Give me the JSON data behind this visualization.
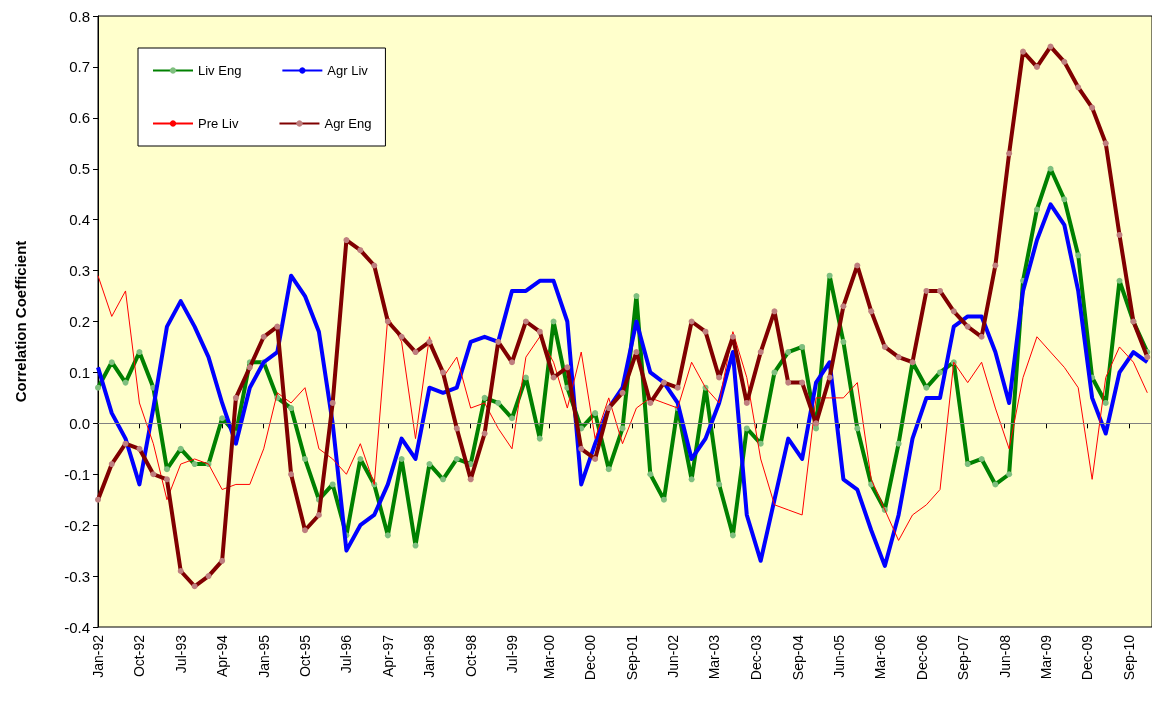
{
  "chart_data": {
    "type": "line",
    "ylabel": "Correlation Coefficient",
    "x": [
      "1992-01",
      "1992-04",
      "1992-07",
      "1992-10",
      "1993-01",
      "1993-04",
      "1993-07",
      "1993-10",
      "1994-01",
      "1994-04",
      "1994-07",
      "1994-10",
      "1995-01",
      "1995-04",
      "1995-07",
      "1995-10",
      "1996-01",
      "1996-04",
      "1996-07",
      "1996-10",
      "1997-01",
      "1997-04",
      "1997-07",
      "1997-10",
      "1998-01",
      "1998-04",
      "1998-07",
      "1998-10",
      "1999-01",
      "1999-04",
      "1999-07",
      "1999-10",
      "2000-01",
      "2000-04",
      "2000-07",
      "2000-10",
      "2001-01",
      "2001-04",
      "2001-07",
      "2001-10",
      "2002-01",
      "2002-04",
      "2002-07",
      "2002-10",
      "2003-01",
      "2003-04",
      "2003-07",
      "2003-10",
      "2004-01",
      "2004-04",
      "2004-07",
      "2004-10",
      "2005-01",
      "2005-04",
      "2005-07",
      "2005-10",
      "2006-01",
      "2006-04",
      "2006-07",
      "2006-10",
      "2007-01",
      "2007-04",
      "2007-07",
      "2007-10",
      "2008-01",
      "2008-04",
      "2008-07",
      "2008-10",
      "2009-01",
      "2009-04",
      "2009-07",
      "2009-10",
      "2010-01",
      "2010-04",
      "2010-07",
      "2010-10",
      "2011-01"
    ],
    "series": [
      {
        "name": "Liv Eng",
        "color": "#008000",
        "marker": "circle",
        "values": [
          0.07,
          0.12,
          0.08,
          0.14,
          0.07,
          -0.09,
          -0.05,
          -0.08,
          -0.08,
          0.01,
          -0.02,
          0.12,
          0.12,
          0.05,
          0.03,
          -0.07,
          -0.15,
          -0.12,
          -0.22,
          -0.07,
          -0.12,
          -0.22,
          -0.07,
          -0.24,
          -0.08,
          -0.11,
          -0.07,
          -0.08,
          0.05,
          0.04,
          0.01,
          0.09,
          -0.03,
          0.2,
          0.07,
          -0.01,
          0.02,
          -0.09,
          -0.01,
          0.25,
          -0.1,
          -0.15,
          0.03,
          -0.11,
          0.07,
          -0.12,
          -0.22,
          -0.01,
          -0.04,
          0.1,
          0.14,
          0.15,
          -0.01,
          0.29,
          0.16,
          -0.01,
          -0.12,
          -0.17,
          -0.04,
          0.12,
          0.07,
          0.1,
          0.12,
          -0.08,
          -0.07,
          -0.12,
          -0.1,
          0.28,
          0.42,
          0.5,
          0.44,
          0.33,
          0.09,
          0.04,
          0.28,
          0.2,
          0.14
        ]
      },
      {
        "name": "Agr Liv",
        "color": "#0000ff",
        "marker": "none",
        "values": [
          0.11,
          0.02,
          -0.03,
          -0.12,
          0.03,
          0.19,
          0.24,
          0.19,
          0.13,
          0.04,
          -0.04,
          0.07,
          0.12,
          0.14,
          0.29,
          0.25,
          0.18,
          0.0,
          -0.25,
          -0.2,
          -0.18,
          -0.12,
          -0.03,
          -0.07,
          0.07,
          0.06,
          0.07,
          0.16,
          0.17,
          0.16,
          0.26,
          0.26,
          0.28,
          0.28,
          0.2,
          -0.12,
          -0.04,
          0.03,
          0.07,
          0.2,
          0.1,
          0.08,
          0.04,
          -0.07,
          -0.03,
          0.04,
          0.14,
          -0.18,
          -0.27,
          -0.15,
          -0.03,
          -0.07,
          0.08,
          0.12,
          -0.11,
          -0.13,
          -0.21,
          -0.28,
          -0.18,
          -0.03,
          0.05,
          0.05,
          0.19,
          0.21,
          0.21,
          0.14,
          0.04,
          0.26,
          0.36,
          0.43,
          0.39,
          0.26,
          0.05,
          -0.02,
          0.1,
          0.14,
          0.12
        ]
      },
      {
        "name": "Pre Liv",
        "color": "#ff0000",
        "marker": "none",
        "values": [
          0.29,
          0.21,
          0.26,
          0.04,
          -0.04,
          -0.15,
          -0.08,
          -0.07,
          -0.08,
          -0.13,
          -0.12,
          -0.12,
          -0.05,
          0.06,
          0.04,
          0.07,
          -0.05,
          -0.07,
          -0.1,
          -0.04,
          -0.12,
          0.21,
          0.16,
          -0.03,
          0.17,
          0.09,
          0.13,
          0.03,
          0.04,
          -0.01,
          -0.05,
          0.13,
          0.17,
          0.12,
          0.03,
          0.14,
          -0.03,
          0.05,
          -0.04,
          0.03,
          0.05,
          0.04,
          0.03,
          0.12,
          0.07,
          0.04,
          0.18,
          0.09,
          -0.07,
          -0.16,
          -0.17,
          -0.18,
          0.05,
          0.05,
          0.05,
          0.08,
          -0.11,
          -0.17,
          -0.23,
          -0.18,
          -0.16,
          -0.13,
          0.12,
          0.08,
          0.12,
          0.03,
          -0.05,
          0.09,
          0.17,
          0.14,
          0.11,
          0.07,
          -0.11,
          0.09,
          0.15,
          0.12,
          0.06
        ]
      },
      {
        "name": "Agr Eng",
        "color": "#800000",
        "marker": "circle",
        "values": [
          -0.15,
          -0.08,
          -0.04,
          -0.05,
          -0.1,
          -0.11,
          -0.29,
          -0.32,
          -0.3,
          -0.27,
          0.05,
          0.11,
          0.17,
          0.19,
          -0.1,
          -0.21,
          -0.18,
          0.04,
          0.36,
          0.34,
          0.31,
          0.2,
          0.17,
          0.14,
          0.16,
          0.1,
          -0.01,
          -0.11,
          -0.02,
          0.16,
          0.12,
          0.2,
          0.18,
          0.09,
          0.11,
          -0.05,
          -0.07,
          0.03,
          0.06,
          0.14,
          0.04,
          0.08,
          0.07,
          0.2,
          0.18,
          0.09,
          0.17,
          0.04,
          0.14,
          0.22,
          0.08,
          0.08,
          0.0,
          0.09,
          0.23,
          0.31,
          0.22,
          0.15,
          0.13,
          0.12,
          0.26,
          0.26,
          0.22,
          0.19,
          0.17,
          0.31,
          0.53,
          0.73,
          0.7,
          0.74,
          0.71,
          0.66,
          0.62,
          0.55,
          0.37,
          0.2,
          0.13
        ]
      }
    ],
    "xlim": [
      "1992-01",
      "2011-02"
    ],
    "xticks": [
      {
        "value": "1992-01",
        "label": "Jan-92"
      },
      {
        "value": "1992-10",
        "label": "Oct-92"
      },
      {
        "value": "1993-07",
        "label": "Jul-93"
      },
      {
        "value": "1994-04",
        "label": "Apr-94"
      },
      {
        "value": "1995-01",
        "label": "Jan-95"
      },
      {
        "value": "1995-10",
        "label": "Oct-95"
      },
      {
        "value": "1996-07",
        "label": "Jul-96"
      },
      {
        "value": "1997-04",
        "label": "Apr-97"
      },
      {
        "value": "1998-01",
        "label": "Jan-98"
      },
      {
        "value": "1998-10",
        "label": "Oct-98"
      },
      {
        "value": "1999-07",
        "label": "Jul-99"
      },
      {
        "value": "2000-03",
        "label": "Mar-00"
      },
      {
        "value": "2000-12",
        "label": "Dec-00"
      },
      {
        "value": "2001-09",
        "label": "Sep-01"
      },
      {
        "value": "2002-06",
        "label": "Jun-02"
      },
      {
        "value": "2003-03",
        "label": "Mar-03"
      },
      {
        "value": "2003-12",
        "label": "Dec-03"
      },
      {
        "value": "2004-09",
        "label": "Sep-04"
      },
      {
        "value": "2005-06",
        "label": "Jun-05"
      },
      {
        "value": "2006-03",
        "label": "Mar-06"
      },
      {
        "value": "2006-12",
        "label": "Dec-06"
      },
      {
        "value": "2007-09",
        "label": "Sep-07"
      },
      {
        "value": "2008-06",
        "label": "Jun-08"
      },
      {
        "value": "2009-03",
        "label": "Mar-09"
      },
      {
        "value": "2009-12",
        "label": "Dec-09"
      },
      {
        "value": "2010-09",
        "label": "Sep-10"
      }
    ],
    "ylim": [
      -0.4,
      0.8
    ],
    "yticks": [
      -0.4,
      -0.3,
      -0.2,
      -0.1,
      {
        "value": 0,
        "label": "0.0"
      },
      0.1,
      0.2,
      0.3,
      0.4,
      0.5,
      0.6,
      0.7,
      0.8
    ],
    "ref_lines": [
      {
        "axis": "y",
        "value": 0,
        "color": "#808080"
      }
    ],
    "grid": false,
    "legend": "top left"
  }
}
